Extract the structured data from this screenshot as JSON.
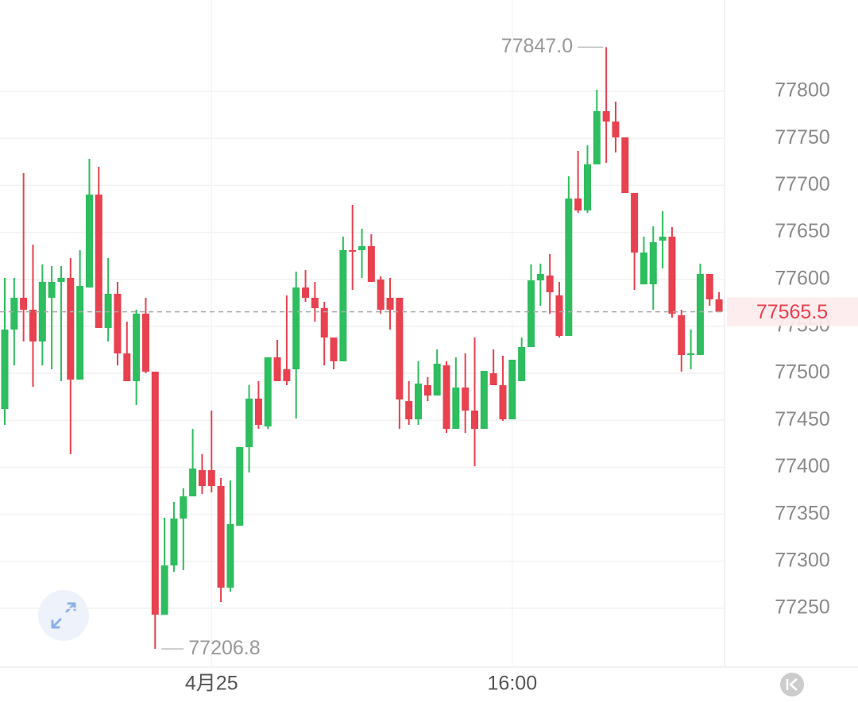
{
  "chart_data": {
    "type": "candlestick",
    "categories": [
      null,
      null,
      null,
      null,
      null,
      null,
      null,
      null,
      null,
      null,
      null,
      null,
      null,
      null,
      null,
      null,
      null,
      null,
      null,
      null,
      null,
      null,
      "4月25",
      null,
      null,
      null,
      null,
      null,
      null,
      null,
      null,
      null,
      null,
      null,
      null,
      null,
      null,
      null,
      null,
      null,
      null,
      null,
      null,
      null,
      null,
      null,
      null,
      null,
      null,
      null,
      null,
      null,
      null,
      null,
      "16:00",
      null,
      null,
      null,
      null,
      null,
      null,
      null,
      null,
      null,
      null,
      null,
      null,
      null,
      null,
      null,
      null,
      null,
      null,
      null,
      null,
      null,
      null
    ],
    "open": [
      77462.1,
      77546.6,
      77580.4,
      77567.7,
      77533.9,
      77580.4,
      77597.3,
      77601.5,
      77493.3,
      77591.3,
      77690.2,
      77548.3,
      77584.6,
      77521.2,
      77491.7,
      77563.5,
      77501.8,
      77243.2,
      77295.6,
      77345.5,
      77369.1,
      77397.0,
      77397.0,
      77380.1,
      77272.0,
      77337.9,
      77421.5,
      77473.1,
      77443.5,
      77517.0,
      77504.3,
      77504.3,
      77591.3,
      77580.4,
      77569.4,
      77538.1,
      77512.8,
      77631.1,
      77631.1,
      77635.3,
      77599.8,
      77580.4,
      77580.4,
      77470.5,
      77451.1,
      77487.4,
      77476.4,
      77508.5,
      77440.9,
      77484.9,
      77460.4,
      77440.9,
      77500.1,
      77487.4,
      77451.1,
      77491.7,
      77528.0,
      77598.9,
      77604.0,
      77582.9,
      77539.8,
      77686.0,
      77673.3,
      77722.3,
      77778.9,
      77767.9,
      77751.0,
      77691.9,
      77594.7,
      77594.7,
      77641.2,
      77645.4,
      77561.8,
      77519.5,
      77519.5,
      77605.7,
      77578.7
    ],
    "high": [
      77601.5,
      77601.5,
      77713.0,
      77637.0,
      77615.9,
      77614.2,
      77614.2,
      77622.6,
      77631.1,
      77728.2,
      77719.8,
      77622.6,
      77597.3,
      77555.0,
      77567.7,
      77580.4,
      77501.8,
      77346.3,
      77363.2,
      77377.6,
      77440.9,
      77413.9,
      77460.4,
      77388.6,
      77386.0,
      77421.5,
      77487.4,
      77491.7,
      77517.0,
      77535.6,
      77582.9,
      77608.2,
      77609.9,
      77597.3,
      77576.1,
      77538.1,
      77645.4,
      77679.2,
      77653.9,
      77648.0,
      77603.2,
      77601.5,
      77580.4,
      77491.7,
      77512.8,
      77495.9,
      77525.4,
      77512.8,
      77517.0,
      77521.2,
      77538.1,
      77502.6,
      77525.4,
      77518.7,
      77514.5,
      77538.1,
      77615.9,
      77616.7,
      77626.8,
      77597.3,
      77709.6,
      77736.7,
      77742.6,
      77801.7,
      77847.0,
      77789.1,
      77751.0,
      77691.9,
      77645.4,
      77656.4,
      77672.5,
      77655.6,
      77567.7,
      77546.6,
      77616.7,
      77605.7,
      77586.3
    ],
    "low": [
      77445.2,
      77508.5,
      77533.9,
      77485.7,
      77508.5,
      77504.3,
      77491.7,
      77413.9,
      77493.3,
      77591.3,
      77548.3,
      77533.9,
      77508.5,
      77491.7,
      77466.3,
      77500.1,
      77206.8,
      77243.2,
      77288.9,
      77290.6,
      77369.1,
      77371.7,
      77373.4,
      77256.8,
      77267.8,
      77337.9,
      77394.5,
      77440.9,
      77440.9,
      77491.7,
      77487.4,
      77451.9,
      77576.1,
      77555.0,
      77508.5,
      77504.3,
      77512.8,
      77588.8,
      77601.5,
      77597.3,
      77563.5,
      77546.6,
      77440.9,
      77445.2,
      77445.2,
      77470.5,
      77476.4,
      77436.7,
      77440.9,
      77436.7,
      77401.2,
      77440.9,
      77487.4,
      77449.4,
      77451.1,
      77491.7,
      77528.0,
      77571.9,
      77563.5,
      77538.1,
      77539.8,
      77670.8,
      77670.8,
      77722.3,
      77724.0,
      77735.0,
      77691.9,
      77588.8,
      77594.7,
      77567.7,
      77611.6,
      77559.2,
      77501.8,
      77504.3,
      77519.5,
      77571.9,
      77565.5
    ],
    "close": [
      77546.6,
      77580.4,
      77567.7,
      77533.9,
      77597.3,
      77597.3,
      77601.5,
      77493.3,
      77593.0,
      77690.2,
      77548.3,
      77584.6,
      77521.2,
      77491.7,
      77563.5,
      77501.8,
      77243.2,
      77295.6,
      77345.5,
      77369.1,
      77398.7,
      77380.1,
      77380.1,
      77272.0,
      77339.6,
      77421.5,
      77473.1,
      77445.2,
      77517.0,
      77491.7,
      77491.7,
      77591.3,
      77580.4,
      77569.4,
      77538.1,
      77512.8,
      77631.1,
      77629.4,
      77635.3,
      77597.3,
      77567.7,
      77567.7,
      77472.2,
      77451.1,
      77489.1,
      77476.4,
      77510.2,
      77440.9,
      77484.9,
      77460.4,
      77440.9,
      77502.6,
      77487.4,
      77451.1,
      77514.5,
      77528.0,
      77598.9,
      77605.7,
      77586.3,
      77539.8,
      77686.0,
      77673.3,
      77722.3,
      77778.9,
      77767.9,
      77751.0,
      77691.9,
      77628.5,
      77628.5,
      77639.5,
      77645.4,
      77563.5,
      77519.5,
      77521.2,
      77605.7,
      77578.7,
      77565.5
    ],
    "up_color": "#2ebd5f",
    "down_color": "#e8414f",
    "ylim": [
      77187.5,
      77897.2
    ],
    "yticks": [
      77250,
      77300,
      77350,
      77400,
      77450,
      77500,
      77550,
      77600,
      77650,
      77700,
      77750,
      77800
    ],
    "grid": true,
    "high_label": "77847.0",
    "low_label": "77206.8",
    "last_price": 77565.5
  }
}
